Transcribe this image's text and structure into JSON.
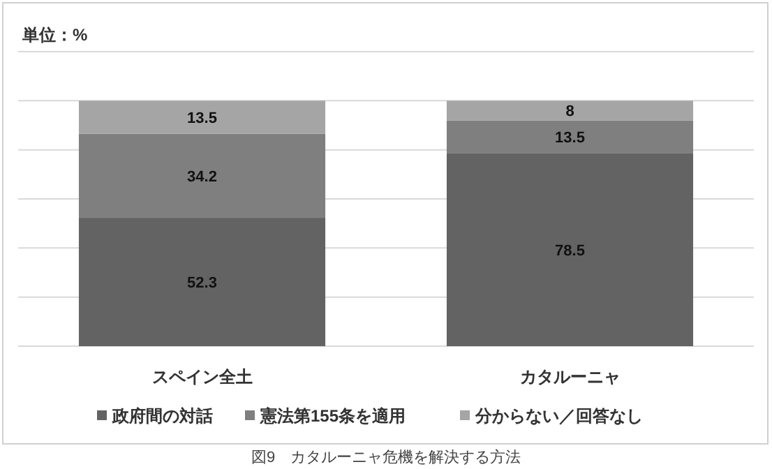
{
  "chart_data": {
    "type": "bar",
    "title": "単位：%",
    "stacked": true,
    "categories": [
      "スペイン全土",
      "カタルーニャ"
    ],
    "series": [
      {
        "name": "政府間の対話",
        "color": "#636363",
        "values": [
          52.3,
          78.5
        ]
      },
      {
        "name": "憲法第155条を適用",
        "color": "#7f7f7f",
        "values": [
          34.2,
          13.5
        ]
      },
      {
        "name": "分からない／回答なし",
        "color": "#a5a5a5",
        "values": [
          13.5,
          8
        ]
      }
    ],
    "ylim": [
      0,
      120
    ],
    "yticks": [
      {
        "value": 0,
        "label": null
      },
      {
        "value": 20,
        "label": null
      },
      {
        "value": 40,
        "label": null
      },
      {
        "value": 60,
        "label": null
      },
      {
        "value": 80,
        "label": null
      },
      {
        "value": 100,
        "label": null
      },
      {
        "value": 120,
        "label": null
      }
    ],
    "tick_labels": "x",
    "grid": "y",
    "legend": "bottom",
    "data_labels": true,
    "annotations": [
      "図9　カタルーニャ危機を解決する方法"
    ]
  }
}
